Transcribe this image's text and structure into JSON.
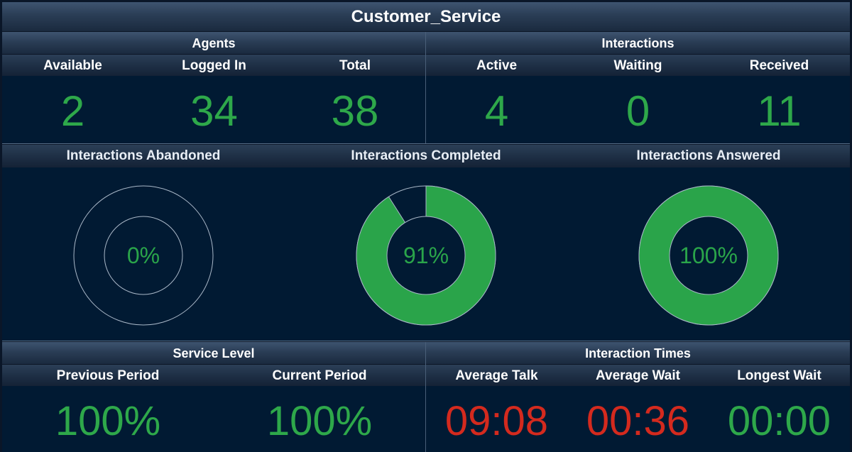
{
  "header": {
    "title": "Customer_Service"
  },
  "agents": {
    "title": "Agents",
    "labels": {
      "available": "Available",
      "logged_in": "Logged In",
      "total": "Total"
    },
    "values": {
      "available": "2",
      "logged_in": "34",
      "total": "38"
    }
  },
  "interactions": {
    "title": "Interactions",
    "labels": {
      "active": "Active",
      "waiting": "Waiting",
      "received": "Received"
    },
    "values": {
      "active": "4",
      "waiting": "0",
      "received": "11"
    }
  },
  "donuts": {
    "abandoned": {
      "title": "Interactions Abandoned",
      "label": "0%",
      "percent": 0
    },
    "completed": {
      "title": "Interactions Completed",
      "label": "91%",
      "percent": 91
    },
    "answered": {
      "title": "Interactions Answered",
      "label": "100%",
      "percent": 100
    }
  },
  "service_level": {
    "title": "Service Level",
    "labels": {
      "previous": "Previous Period",
      "current": "Current Period"
    },
    "values": {
      "previous": "100%",
      "current": "100%"
    }
  },
  "interaction_times": {
    "title": "Interaction Times",
    "labels": {
      "avg_talk": "Average Talk",
      "avg_wait": "Average Wait",
      "longest_wait": "Longest Wait"
    },
    "values": {
      "avg_talk": "09:08",
      "avg_wait": "00:36",
      "longest_wait": "00:00"
    }
  },
  "colors": {
    "ok": "#2ea84a",
    "alert": "#d42a1e",
    "donut_fill": "#2aa44a",
    "ring_outline": "#aab8c8",
    "panel_bg": "#011a33"
  }
}
